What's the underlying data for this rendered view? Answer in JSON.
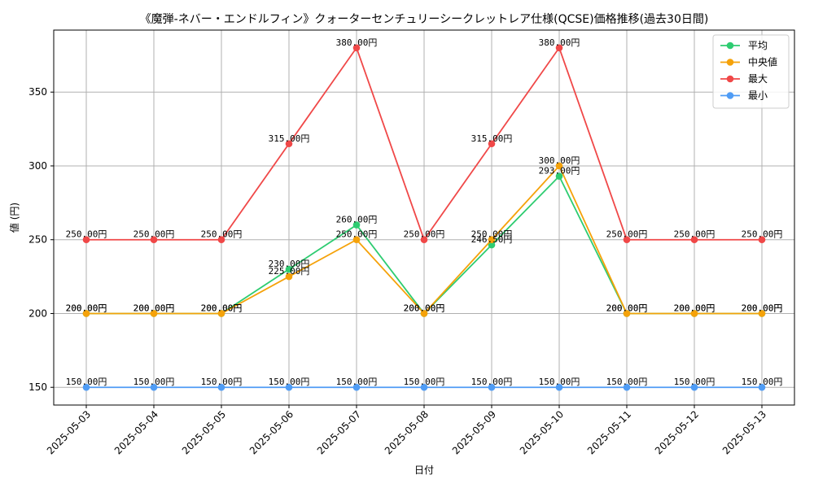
{
  "chart_data": {
    "type": "line",
    "title": "《魔弾-ネバー・エンドルフィン》クォーターセンチュリーシークレットレア仕様(QCSE)価格推移(過去30日間)",
    "xlabel": "日付",
    "ylabel": "値 (円)",
    "categories": [
      "2025-05-03",
      "2025-05-04",
      "2025-05-05",
      "2025-05-06",
      "2025-05-07",
      "2025-05-08",
      "2025-05-09",
      "2025-05-10",
      "2025-05-11",
      "2025-05-12",
      "2025-05-13"
    ],
    "ylim": [
      138,
      392
    ],
    "yticks": [
      150,
      200,
      250,
      300,
      350
    ],
    "grid": true,
    "legend_position": "top-right",
    "value_suffix": "円",
    "series": [
      {
        "name": "平均",
        "color": "#2ecc71",
        "values": [
          200,
          200,
          200,
          230,
          260,
          200,
          246.5,
          293,
          200,
          200,
          200
        ]
      },
      {
        "name": "中央値",
        "color": "#f5a20a",
        "values": [
          200,
          200,
          200,
          225,
          250,
          200,
          250,
          300,
          200,
          200,
          200
        ]
      },
      {
        "name": "最大",
        "color": "#f04848",
        "values": [
          250,
          250,
          250,
          315,
          380,
          250,
          315,
          380,
          250,
          250,
          250
        ]
      },
      {
        "name": "最小",
        "color": "#4f9cf5",
        "values": [
          150,
          150,
          150,
          150,
          150,
          150,
          150,
          150,
          150,
          150,
          150
        ]
      }
    ]
  }
}
